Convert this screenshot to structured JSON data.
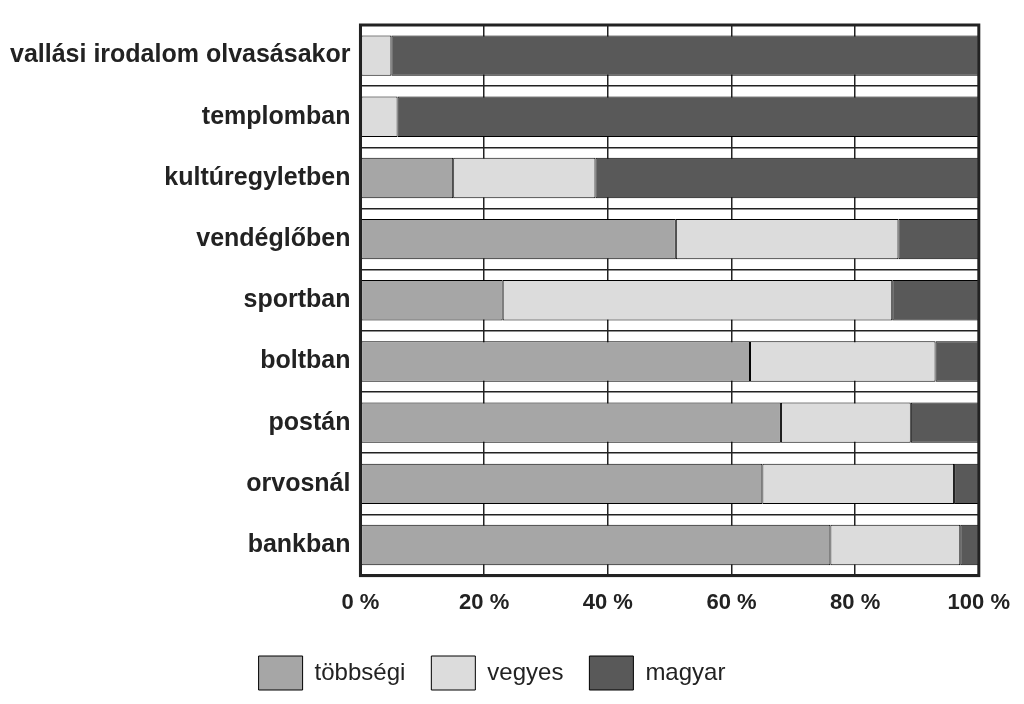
{
  "chart_data": {
    "type": "bar",
    "orientation": "horizontal",
    "stacked": true,
    "grid": true,
    "legend": "bottom",
    "categories": [
      "vallási irodalom olvasásakor",
      "templomban",
      "kultúregyletben",
      "vendéglőben",
      "sportban",
      "boltban",
      "postán",
      "orvosnál",
      "bankban"
    ],
    "series": [
      {
        "name": "többségi",
        "color": "#a6a6a6",
        "values": [
          0,
          0,
          15,
          51,
          23,
          63,
          68,
          65,
          76
        ]
      },
      {
        "name": "vegyes",
        "color": "#dcdcdc",
        "values": [
          5,
          6,
          23,
          36,
          63,
          30,
          21,
          31,
          21
        ]
      },
      {
        "name": "magyar",
        "color": "#595959",
        "values": [
          95,
          94,
          62,
          13,
          14,
          7,
          11,
          4,
          3
        ]
      }
    ],
    "xlim": [
      0,
      100
    ],
    "xticks": [
      {
        "value": 0,
        "label": "0 %"
      },
      {
        "value": 20,
        "label": "20 %"
      },
      {
        "value": 40,
        "label": "40 %"
      },
      {
        "value": 60,
        "label": "60 %"
      },
      {
        "value": 80,
        "label": "80 %"
      },
      {
        "value": 100,
        "label": "100 %"
      }
    ]
  }
}
